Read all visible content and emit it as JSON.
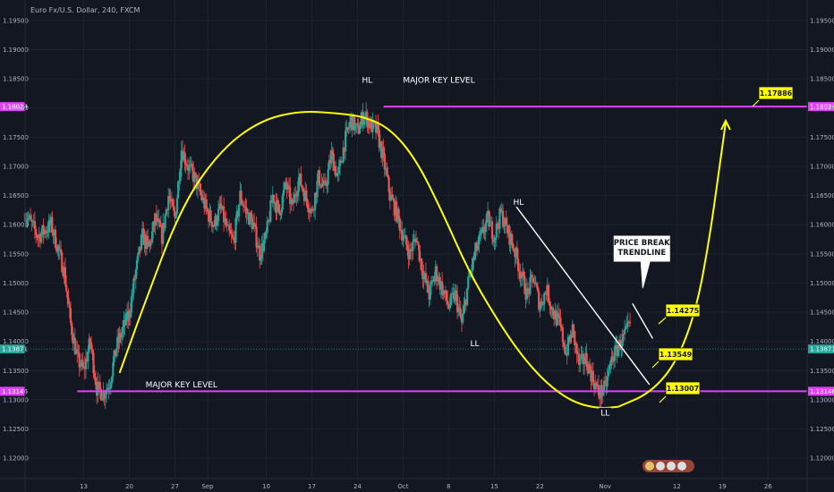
{
  "chart_data": {
    "type": "candlestick",
    "title": "Euro Fx/U.S. Dollar, 240, FXCM",
    "ylim": [
      1.1165,
      1.1985
    ],
    "y_ticks": [
      1.195,
      1.19,
      1.185,
      1.18,
      1.175,
      1.17,
      1.165,
      1.16,
      1.155,
      1.15,
      1.145,
      1.14,
      1.135,
      1.13,
      1.125,
      1.12
    ],
    "y_tick_labels": [
      "1.19500",
      "1.19000",
      "1.18500",
      "1.18000",
      "1.17500",
      "1.17000",
      "1.16500",
      "1.16000",
      "1.15500",
      "1.15000",
      "1.14500",
      "1.14000",
      "1.13500",
      "1.13000",
      "1.12500",
      "1.12000"
    ],
    "x_ticks": [
      {
        "label": "13",
        "day": 13
      },
      {
        "label": "20",
        "day": 20
      },
      {
        "label": "27",
        "day": 27
      },
      {
        "label": "Sep",
        "day": 32
      },
      {
        "label": "10",
        "day": 41
      },
      {
        "label": "17",
        "day": 48
      },
      {
        "label": "24",
        "day": 55
      },
      {
        "label": "Oct",
        "day": 62
      },
      {
        "label": "8",
        "day": 69
      },
      {
        "label": "15",
        "day": 76
      },
      {
        "label": "22",
        "day": 83
      },
      {
        "label": "Nov",
        "day": 93
      },
      {
        "label": "12",
        "day": 104
      },
      {
        "label": "19",
        "day": 111
      },
      {
        "label": "26",
        "day": 118
      }
    ],
    "xlim": [
      4,
      124
    ],
    "price_path": [
      [
        4,
        1.162
      ],
      [
        6,
        1.158
      ],
      [
        8,
        1.16
      ],
      [
        10,
        1.152
      ],
      [
        11,
        1.143
      ],
      [
        12,
        1.137
      ],
      [
        13,
        1.135
      ],
      [
        14,
        1.14
      ],
      [
        15,
        1.132
      ],
      [
        16,
        1.131
      ],
      [
        17,
        1.133
      ],
      [
        18,
        1.139
      ],
      [
        19,
        1.142
      ],
      [
        20,
        1.145
      ],
      [
        21,
        1.152
      ],
      [
        22,
        1.158
      ],
      [
        23,
        1.156
      ],
      [
        24,
        1.161
      ],
      [
        25,
        1.158
      ],
      [
        26,
        1.165
      ],
      [
        27,
        1.161
      ],
      [
        28,
        1.173
      ],
      [
        29,
        1.17
      ],
      [
        30,
        1.168
      ],
      [
        31,
        1.165
      ],
      [
        32,
        1.162
      ],
      [
        33,
        1.16
      ],
      [
        34,
        1.163
      ],
      [
        35,
        1.159
      ],
      [
        36,
        1.157
      ],
      [
        37,
        1.165
      ],
      [
        38,
        1.162
      ],
      [
        39,
        1.16
      ],
      [
        40,
        1.155
      ],
      [
        41,
        1.158
      ],
      [
        42,
        1.165
      ],
      [
        43,
        1.162
      ],
      [
        44,
        1.167
      ],
      [
        45,
        1.163
      ],
      [
        46,
        1.168
      ],
      [
        47,
        1.165
      ],
      [
        48,
        1.162
      ],
      [
        49,
        1.168
      ],
      [
        50,
        1.166
      ],
      [
        51,
        1.172
      ],
      [
        52,
        1.168
      ],
      [
        53,
        1.174
      ],
      [
        54,
        1.178
      ],
      [
        55,
        1.176
      ],
      [
        56,
        1.179
      ],
      [
        57,
        1.177
      ],
      [
        58,
        1.176
      ],
      [
        59,
        1.171
      ],
      [
        60,
        1.165
      ],
      [
        61,
        1.162
      ],
      [
        62,
        1.158
      ],
      [
        63,
        1.155
      ],
      [
        64,
        1.158
      ],
      [
        65,
        1.152
      ],
      [
        66,
        1.148
      ],
      [
        67,
        1.152
      ],
      [
        68,
        1.149
      ],
      [
        69,
        1.146
      ],
      [
        70,
        1.148
      ],
      [
        71,
        1.143
      ],
      [
        72,
        1.15
      ],
      [
        73,
        1.155
      ],
      [
        74,
        1.158
      ],
      [
        75,
        1.161
      ],
      [
        76,
        1.158
      ],
      [
        77,
        1.162
      ],
      [
        78,
        1.159
      ],
      [
        79,
        1.156
      ],
      [
        80,
        1.152
      ],
      [
        81,
        1.148
      ],
      [
        82,
        1.151
      ],
      [
        83,
        1.146
      ],
      [
        84,
        1.149
      ],
      [
        85,
        1.145
      ],
      [
        86,
        1.143
      ],
      [
        87,
        1.138
      ],
      [
        88,
        1.142
      ],
      [
        89,
        1.136
      ],
      [
        90,
        1.137
      ],
      [
        91,
        1.134
      ],
      [
        92,
        1.131
      ],
      [
        93,
        1.132
      ],
      [
        94,
        1.137
      ],
      [
        95,
        1.139
      ],
      [
        96,
        1.141
      ],
      [
        97,
        1.143
      ]
    ],
    "current_price": {
      "value": 1.13871,
      "label": "1.13871"
    },
    "horizontal_levels": [
      {
        "name": "MAJOR KEY LEVEL",
        "value": 1.18024,
        "axis_label": "1.18024",
        "from_day": 59
      },
      {
        "name": "MAJOR KEY LEVEL",
        "value": 1.13146,
        "axis_label": "1.13146",
        "from_day": 12
      }
    ],
    "annotations": [
      {
        "text": "HL",
        "day": 56.5,
        "y": 1.1848
      },
      {
        "text": "HL",
        "day": 79.7,
        "y": 1.1639
      },
      {
        "text": "LL",
        "day": 73,
        "y": 1.1397
      },
      {
        "text": "LL",
        "day": 93,
        "y": 1.1278
      },
      {
        "text": "MAJOR KEY LEVEL",
        "day": 67.5,
        "y": 1.1848
      },
      {
        "text": "MAJOR KEY LEVEL",
        "day": 28,
        "y": 1.1326
      }
    ],
    "callout": {
      "text": [
        "PRICE BREAK",
        "TRENDLINE"
      ]
    },
    "price_boxes": [
      {
        "label": "1.17886",
        "value": 1.17886
      },
      {
        "label": "1.14275",
        "value": 1.14275
      },
      {
        "label": "1.13549",
        "value": 1.13549
      },
      {
        "label": "1.13007",
        "value": 1.13007
      }
    ],
    "colors": {
      "background": "#131722",
      "up": "#26a69a",
      "down": "#ef5350",
      "level": "#e040fb",
      "curve": "#ffff00",
      "trendline": "#ffffff",
      "axis_text": "#b2b5be",
      "price_tag": "#26a69a"
    }
  }
}
